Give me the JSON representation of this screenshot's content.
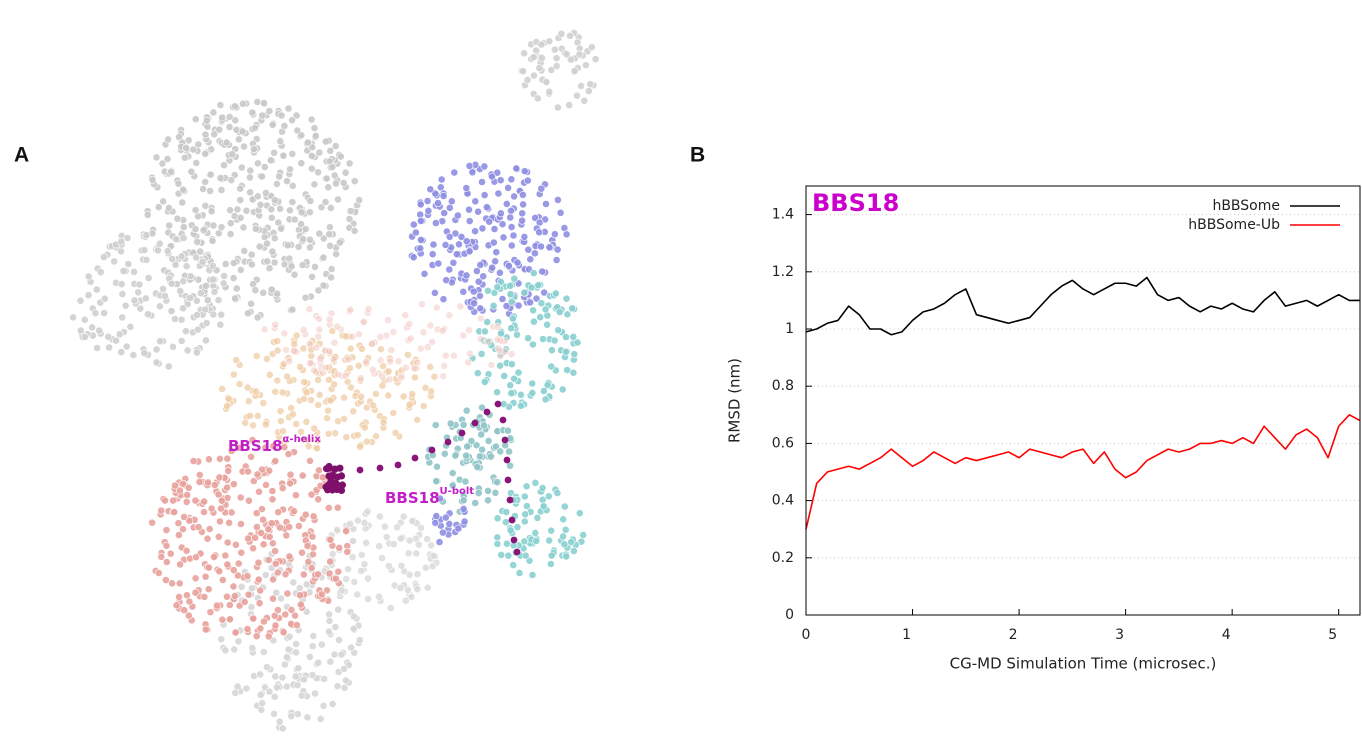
{
  "panels": {
    "a": "A",
    "b": "B"
  },
  "molecule_labels": [
    {
      "text": "BBS18",
      "sup": "α-helix"
    },
    {
      "text": "BBS18",
      "sup": "U-bolt"
    }
  ],
  "chart_data": {
    "type": "line",
    "title": "BBS18",
    "title_color": "#cc00cc",
    "xlabel": "CG-MD Simulation Time (microsec.)",
    "ylabel": "RMSD (nm)",
    "x": [
      0,
      0.1,
      0.2,
      0.3,
      0.4,
      0.5,
      0.6,
      0.7,
      0.8,
      0.9,
      1,
      1.1,
      1.2,
      1.3,
      1.4,
      1.5,
      1.6,
      1.7,
      1.8,
      1.9,
      2,
      2.1,
      2.2,
      2.3,
      2.4,
      2.5,
      2.6,
      2.7,
      2.8,
      2.9,
      3,
      3.1,
      3.2,
      3.3,
      3.4,
      3.5,
      3.6,
      3.7,
      3.8,
      3.9,
      4,
      4.1,
      4.2,
      4.3,
      4.4,
      4.5,
      4.6,
      4.7,
      4.8,
      4.9,
      5,
      5.1,
      5.2
    ],
    "series": [
      {
        "name": "hBBSome",
        "color": "#000000",
        "values": [
          0.99,
          1.0,
          1.02,
          1.03,
          1.08,
          1.05,
          1.0,
          1.0,
          0.98,
          0.99,
          1.03,
          1.06,
          1.07,
          1.09,
          1.12,
          1.14,
          1.05,
          1.04,
          1.03,
          1.02,
          1.03,
          1.04,
          1.08,
          1.12,
          1.15,
          1.17,
          1.14,
          1.12,
          1.14,
          1.16,
          1.16,
          1.15,
          1.18,
          1.12,
          1.1,
          1.11,
          1.08,
          1.06,
          1.08,
          1.07,
          1.09,
          1.07,
          1.06,
          1.1,
          1.13,
          1.08,
          1.09,
          1.1,
          1.08,
          1.1,
          1.12,
          1.1,
          1.1
        ]
      },
      {
        "name": "hBBSome-Ub",
        "color": "#ff0000",
        "values": [
          0.3,
          0.46,
          0.5,
          0.51,
          0.52,
          0.51,
          0.53,
          0.55,
          0.58,
          0.55,
          0.52,
          0.54,
          0.57,
          0.55,
          0.53,
          0.55,
          0.54,
          0.55,
          0.56,
          0.57,
          0.55,
          0.58,
          0.57,
          0.56,
          0.55,
          0.57,
          0.58,
          0.53,
          0.57,
          0.51,
          0.48,
          0.5,
          0.54,
          0.56,
          0.58,
          0.57,
          0.58,
          0.6,
          0.6,
          0.61,
          0.6,
          0.62,
          0.6,
          0.66,
          0.62,
          0.58,
          0.63,
          0.65,
          0.62,
          0.55,
          0.66,
          0.7,
          0.68
        ]
      }
    ],
    "xlim": [
      0,
      5.2
    ],
    "ylim": [
      0,
      1.5
    ],
    "xticks": [
      0,
      1,
      2,
      3,
      4,
      5
    ],
    "yticks": [
      0,
      0.2,
      0.4,
      0.6,
      0.8,
      1,
      1.2,
      1.4
    ],
    "grid": true,
    "legend": "upper-right"
  }
}
